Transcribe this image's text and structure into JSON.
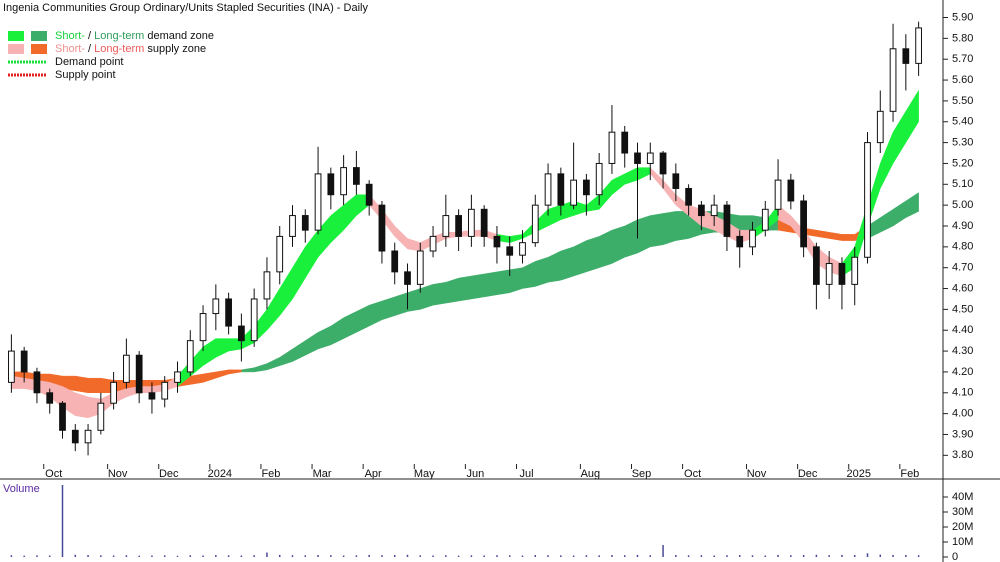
{
  "chart_data": {
    "type": "candlestick",
    "title": "Ingenia Communities Group Ordinary/Units Stapled Securities (INA) - Daily",
    "categories": [
      null,
      null,
      null,
      "Oct",
      null,
      null,
      null,
      null,
      "Nov",
      null,
      null,
      null,
      "Dec",
      null,
      null,
      null,
      "2024",
      null,
      null,
      null,
      "Feb",
      null,
      null,
      null,
      "Mar",
      null,
      null,
      null,
      "Apr",
      null,
      null,
      null,
      "May",
      null,
      null,
      null,
      "Jun",
      null,
      null,
      null,
      "Jul",
      null,
      null,
      null,
      null,
      "Aug",
      null,
      null,
      null,
      "Sep",
      null,
      null,
      null,
      "Oct",
      null,
      null,
      null,
      null,
      "Nov",
      null,
      null,
      null,
      "Dec",
      null,
      null,
      null,
      "2025",
      null,
      null,
      null,
      "Feb",
      null
    ],
    "open": [
      4.15,
      4.3,
      4.2,
      4.1,
      4.05,
      3.92,
      3.86,
      3.92,
      4.05,
      4.15,
      4.28,
      4.1,
      4.07,
      4.15,
      4.2,
      4.35,
      4.48,
      4.55,
      4.42,
      4.35,
      4.55,
      4.68,
      4.85,
      4.95,
      4.88,
      5.15,
      5.05,
      5.18,
      5.1,
      5.0,
      4.78,
      4.68,
      4.62,
      4.78,
      4.85,
      4.95,
      4.85,
      4.98,
      4.85,
      4.8,
      4.76,
      4.82,
      5.0,
      5.15,
      5.0,
      5.12,
      5.05,
      5.2,
      5.35,
      5.25,
      5.2,
      5.25,
      5.15,
      5.08,
      5.0,
      4.95,
      5.0,
      4.85,
      4.8,
      4.88,
      4.98,
      5.12,
      5.02,
      4.8,
      4.62,
      4.72,
      4.62,
      4.75,
      5.3,
      5.45,
      5.75,
      5.68
    ],
    "high": [
      4.38,
      4.32,
      4.22,
      4.12,
      4.06,
      3.95,
      3.95,
      4.1,
      4.2,
      4.36,
      4.3,
      4.15,
      4.18,
      4.25,
      4.4,
      4.52,
      4.62,
      4.58,
      4.48,
      4.6,
      4.75,
      4.9,
      5.0,
      4.98,
      5.28,
      5.18,
      5.24,
      5.26,
      5.12,
      5.02,
      4.82,
      4.72,
      4.82,
      4.9,
      5.05,
      4.98,
      5.05,
      5.0,
      4.9,
      4.85,
      4.88,
      5.05,
      5.2,
      5.18,
      5.3,
      5.15,
      5.25,
      5.48,
      5.38,
      5.3,
      5.3,
      5.26,
      5.2,
      5.1,
      5.02,
      5.05,
      5.02,
      4.88,
      4.92,
      5.02,
      5.22,
      5.15,
      5.05,
      4.82,
      4.78,
      4.75,
      4.8,
      5.35,
      5.55,
      5.87,
      5.82,
      5.88
    ],
    "low": [
      4.1,
      4.15,
      4.05,
      4.0,
      3.88,
      3.82,
      3.8,
      3.9,
      4.02,
      4.12,
      4.05,
      4.0,
      4.03,
      4.1,
      4.18,
      4.3,
      4.4,
      4.38,
      4.25,
      4.32,
      4.5,
      4.62,
      4.8,
      4.82,
      4.86,
      4.98,
      5.0,
      5.05,
      4.95,
      4.72,
      4.62,
      4.5,
      4.58,
      4.75,
      4.8,
      4.78,
      4.8,
      4.8,
      4.72,
      4.66,
      4.72,
      4.8,
      4.95,
      4.95,
      4.98,
      4.95,
      5.0,
      5.15,
      5.18,
      4.84,
      5.12,
      5.08,
      5.02,
      4.95,
      4.88,
      4.9,
      4.78,
      4.7,
      4.76,
      4.85,
      4.95,
      4.98,
      4.75,
      4.5,
      4.55,
      4.5,
      4.52,
      4.72,
      5.25,
      5.4,
      5.55,
      5.62
    ],
    "close": [
      4.3,
      4.2,
      4.1,
      4.05,
      3.92,
      3.86,
      3.92,
      4.05,
      4.15,
      4.28,
      4.1,
      4.07,
      4.15,
      4.2,
      4.35,
      4.48,
      4.55,
      4.42,
      4.35,
      4.55,
      4.68,
      4.85,
      4.95,
      4.88,
      5.15,
      5.05,
      5.18,
      5.1,
      5.0,
      4.78,
      4.68,
      4.62,
      4.78,
      4.85,
      4.95,
      4.85,
      4.98,
      4.85,
      4.8,
      4.76,
      4.82,
      5.0,
      5.15,
      5.0,
      5.12,
      5.05,
      5.2,
      5.35,
      5.25,
      5.2,
      5.25,
      5.15,
      5.08,
      5.0,
      4.95,
      5.0,
      4.85,
      4.8,
      4.88,
      4.98,
      5.12,
      5.02,
      4.8,
      4.62,
      4.72,
      4.62,
      4.75,
      5.3,
      5.45,
      5.75,
      5.68,
      5.85
    ],
    "ylim": [
      3.72,
      5.96
    ],
    "yticks": [
      {
        "value": 3.8,
        "label": "3.80"
      },
      {
        "value": 3.9,
        "label": "3.90"
      },
      {
        "value": 4.0,
        "label": "4.00"
      },
      {
        "value": 4.1,
        "label": "4.10"
      },
      {
        "value": 4.2,
        "label": "4.20"
      },
      {
        "value": 4.3,
        "label": "4.30"
      },
      {
        "value": 4.4,
        "label": "4.40"
      },
      {
        "value": 4.5,
        "label": "4.50"
      },
      {
        "value": 4.6,
        "label": "4.60"
      },
      {
        "value": 4.7,
        "label": "4.70"
      },
      {
        "value": 4.8,
        "label": "4.80"
      },
      {
        "value": 4.9,
        "label": "4.90"
      },
      {
        "value": 5.0,
        "label": "5.00"
      },
      {
        "value": 5.1,
        "label": "5.10"
      },
      {
        "value": 5.2,
        "label": "5.20"
      },
      {
        "value": 5.3,
        "label": "5.30"
      },
      {
        "value": 5.4,
        "label": "5.40"
      },
      {
        "value": 5.5,
        "label": "5.50"
      },
      {
        "value": 5.6,
        "label": "5.60"
      },
      {
        "value": 5.7,
        "label": "5.70"
      },
      {
        "value": 5.8,
        "label": "5.80"
      },
      {
        "value": 5.9,
        "label": "5.90"
      }
    ],
    "zones": {
      "long_supply": {
        "color": "#f26a2a",
        "upper": [
          4.2,
          4.2,
          4.19,
          4.19,
          4.18,
          4.18,
          4.17,
          4.17,
          4.16,
          4.16,
          4.16,
          4.16,
          4.16,
          4.17,
          4.18,
          4.19,
          4.2,
          4.21,
          4.21,
          null,
          null,
          null,
          null,
          null,
          null,
          null,
          null,
          null,
          null,
          null,
          null,
          null,
          null,
          null,
          null,
          null,
          null,
          null,
          null,
          null,
          null,
          null,
          null,
          null,
          null,
          null,
          null,
          null,
          null,
          null,
          null,
          null,
          null,
          null,
          null,
          null,
          null,
          null,
          null,
          null,
          4.93,
          4.91,
          4.89,
          4.88,
          4.87,
          4.86,
          4.86,
          4.9,
          null,
          null,
          null,
          null
        ],
        "lower": [
          4.12,
          4.13,
          4.13,
          4.12,
          4.12,
          4.11,
          4.1,
          4.1,
          4.1,
          4.1,
          4.1,
          4.11,
          4.12,
          4.13,
          4.14,
          4.15,
          4.17,
          4.19,
          4.2,
          null,
          null,
          null,
          null,
          null,
          null,
          null,
          null,
          null,
          null,
          null,
          null,
          null,
          null,
          null,
          null,
          null,
          null,
          null,
          null,
          null,
          null,
          null,
          null,
          null,
          null,
          null,
          null,
          null,
          null,
          null,
          null,
          null,
          null,
          null,
          null,
          null,
          null,
          null,
          null,
          null,
          4.88,
          4.87,
          4.86,
          4.85,
          4.84,
          4.83,
          4.83,
          4.84,
          null,
          null,
          null,
          null
        ]
      },
      "long_demand": {
        "color": "#3dae6a",
        "upper": [
          null,
          null,
          null,
          null,
          null,
          null,
          null,
          null,
          null,
          null,
          null,
          null,
          null,
          null,
          null,
          null,
          null,
          null,
          4.21,
          4.22,
          4.24,
          4.27,
          4.31,
          4.35,
          4.39,
          4.42,
          4.46,
          4.49,
          4.52,
          4.54,
          4.56,
          4.58,
          4.6,
          4.62,
          4.63,
          4.65,
          4.66,
          4.67,
          4.68,
          4.69,
          4.7,
          4.73,
          4.75,
          4.78,
          4.8,
          4.83,
          4.85,
          4.88,
          4.9,
          4.93,
          4.95,
          4.96,
          4.97,
          4.97,
          4.97,
          4.97,
          4.96,
          4.95,
          4.95,
          4.94,
          4.93,
          null,
          null,
          null,
          null,
          null,
          null,
          4.9,
          4.94,
          4.98,
          5.02,
          5.06
        ],
        "lower": [
          null,
          null,
          null,
          null,
          null,
          null,
          null,
          null,
          null,
          null,
          null,
          null,
          null,
          null,
          null,
          null,
          null,
          null,
          4.2,
          4.2,
          4.21,
          4.23,
          4.25,
          4.28,
          4.31,
          4.33,
          4.36,
          4.39,
          4.42,
          4.45,
          4.47,
          4.49,
          4.5,
          4.52,
          4.53,
          4.54,
          4.55,
          4.56,
          4.57,
          4.58,
          4.6,
          4.61,
          4.63,
          4.64,
          4.66,
          4.68,
          4.7,
          4.72,
          4.75,
          4.77,
          4.8,
          4.81,
          4.83,
          4.84,
          4.86,
          4.87,
          4.87,
          4.88,
          4.88,
          4.88,
          4.88,
          null,
          null,
          null,
          null,
          null,
          null,
          4.84,
          4.87,
          4.9,
          4.94,
          4.97
        ]
      },
      "short_supply": {
        "color": "#f7b3b3",
        "upper": [
          4.18,
          4.17,
          4.16,
          4.15,
          4.13,
          4.1,
          4.08,
          4.07,
          4.1,
          4.12,
          4.13,
          4.13,
          4.14,
          4.18,
          null,
          null,
          null,
          null,
          null,
          null,
          null,
          null,
          null,
          null,
          null,
          null,
          null,
          null,
          5.05,
          4.98,
          4.9,
          4.84,
          4.82,
          4.85,
          4.87,
          4.87,
          4.88,
          4.88,
          4.86,
          null,
          null,
          null,
          null,
          null,
          null,
          null,
          null,
          null,
          null,
          null,
          5.18,
          5.12,
          5.05,
          5.0,
          4.98,
          4.95,
          4.92,
          4.88,
          4.88,
          null,
          5.0,
          4.95,
          4.88,
          4.8,
          4.75,
          4.72,
          null,
          null,
          null,
          null,
          null,
          null
        ],
        "lower": [
          4.12,
          4.12,
          4.11,
          4.08,
          4.03,
          3.99,
          3.98,
          4.0,
          4.05,
          4.08,
          4.1,
          4.1,
          4.11,
          4.13,
          null,
          null,
          null,
          null,
          null,
          null,
          null,
          null,
          null,
          null,
          null,
          null,
          null,
          null,
          5.0,
          4.93,
          4.85,
          4.79,
          4.78,
          4.81,
          4.84,
          4.85,
          4.85,
          4.85,
          4.83,
          null,
          null,
          null,
          null,
          null,
          null,
          null,
          null,
          null,
          null,
          null,
          5.15,
          5.08,
          5.0,
          4.95,
          4.9,
          4.88,
          4.85,
          4.82,
          4.84,
          null,
          4.93,
          4.9,
          4.82,
          4.72,
          4.68,
          4.66,
          null,
          null,
          null,
          null,
          null,
          null
        ]
      },
      "short_demand": {
        "color": "#19f03c",
        "upper": [
          null,
          null,
          null,
          null,
          null,
          null,
          null,
          null,
          null,
          null,
          null,
          null,
          null,
          4.18,
          4.25,
          4.32,
          4.36,
          4.36,
          4.36,
          4.42,
          4.5,
          4.6,
          4.7,
          4.8,
          4.88,
          4.95,
          5.0,
          5.05,
          5.05,
          null,
          null,
          null,
          null,
          null,
          null,
          null,
          null,
          null,
          4.86,
          4.85,
          4.86,
          4.92,
          4.98,
          5.0,
          5.02,
          5.0,
          5.05,
          5.12,
          5.15,
          5.18,
          5.18,
          null,
          null,
          null,
          null,
          null,
          null,
          null,
          4.88,
          4.92,
          5.0,
          null,
          null,
          null,
          null,
          4.72,
          4.8,
          5.0,
          5.2,
          5.35,
          5.45,
          5.55
        ],
        "lower": [
          null,
          null,
          null,
          null,
          null,
          null,
          null,
          null,
          null,
          null,
          null,
          null,
          null,
          4.13,
          4.18,
          4.23,
          4.27,
          4.3,
          4.31,
          4.34,
          4.4,
          4.47,
          4.55,
          4.65,
          4.75,
          4.82,
          4.88,
          4.95,
          5.0,
          null,
          null,
          null,
          null,
          null,
          null,
          null,
          null,
          null,
          4.83,
          4.82,
          4.84,
          4.87,
          4.9,
          4.93,
          4.95,
          4.97,
          4.98,
          5.05,
          5.1,
          5.12,
          5.15,
          null,
          null,
          null,
          null,
          null,
          null,
          null,
          4.84,
          4.88,
          4.93,
          null,
          null,
          null,
          null,
          4.66,
          4.7,
          4.9,
          5.08,
          5.2,
          5.3,
          5.4
        ]
      }
    },
    "legend": {
      "demand": [
        "Short-",
        "/",
        "Long-term",
        "demand zone"
      ],
      "supply": [
        "Short-",
        "/",
        "Long-term",
        "supply zone"
      ],
      "demand_point": {
        "label": "Demand point",
        "color": "#19e03c"
      },
      "supply_point": {
        "label": "Supply point",
        "color": "#e02020"
      }
    },
    "volume": {
      "label": "Volume",
      "color": "#4a4a9a",
      "ylim": [
        0,
        48000000
      ],
      "yticks": [
        {
          "value": 0,
          "label": "0"
        },
        {
          "value": 10000000,
          "label": "10M"
        },
        {
          "value": 20000000,
          "label": "20M"
        },
        {
          "value": 30000000,
          "label": "30M"
        },
        {
          "value": 40000000,
          "label": "40M"
        }
      ],
      "values": [
        1200000,
        900000,
        1100000,
        1000000,
        48000000,
        1500000,
        1300000,
        1100000,
        1000000,
        1200000,
        900000,
        1000000,
        1100000,
        800000,
        1200000,
        1000000,
        1300000,
        1100000,
        1000000,
        1200000,
        3000000,
        1400000,
        1200000,
        1100000,
        1300000,
        1200000,
        1000000,
        1100000,
        1400000,
        1200000,
        1300000,
        1500000,
        1100000,
        1000000,
        1200000,
        900000,
        1100000,
        1000000,
        1200000,
        1100000,
        1000000,
        1300000,
        1200000,
        1100000,
        1000000,
        1200000,
        1100000,
        1300000,
        1200000,
        1400000,
        1200000,
        8000000,
        1300000,
        1100000,
        1200000,
        1000000,
        1200000,
        1300000,
        1100000,
        1000000,
        1400000,
        1200000,
        1300000,
        1500000,
        1200000,
        1400000,
        1300000,
        2500000,
        1600000,
        1400000,
        1300000,
        1200000
      ]
    }
  }
}
